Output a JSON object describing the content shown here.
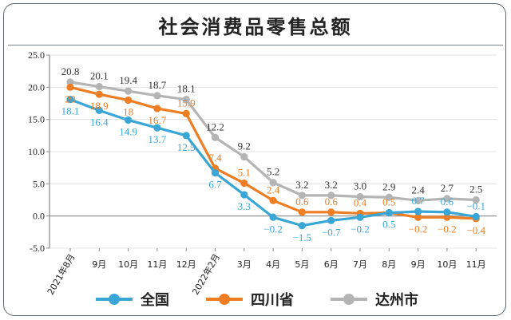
{
  "colors": {
    "national": "#3aa6d6",
    "sichuan": "#ee7d24",
    "dazhou": "#b4b4b4",
    "axis": "#8a8a8a",
    "grid": "#dddddd",
    "text": "#222222"
  },
  "chart_data": {
    "type": "line",
    "title": "社会消费品零售总额",
    "categories": [
      "2021年8月",
      "9月",
      "10月",
      "11月",
      "12月",
      "2022年2月",
      "3月",
      "4月",
      "5月",
      "6月",
      "7月",
      "8月",
      "9月",
      "10月",
      "11月"
    ],
    "ylim": [
      -5.0,
      25.0
    ],
    "yticks": [
      "25.0",
      "20.0",
      "15.0",
      "10.0",
      "5.0",
      "0.0",
      "-5.0"
    ],
    "ytick_values": [
      25,
      20,
      15,
      10,
      5,
      0,
      -5
    ],
    "legend_position": "bottom",
    "series": [
      {
        "name": "全国",
        "key": "national",
        "values": [
          18.1,
          16.4,
          14.9,
          13.7,
          12.5,
          6.7,
          3.3,
          -0.2,
          -1.5,
          -0.7,
          -0.2,
          0.5,
          0.7,
          0.6,
          -0.1
        ],
        "labels": [
          "18.1",
          "16.4",
          "14.9",
          "13.7",
          "12.5",
          "6.7",
          "3.3",
          "−0.2",
          "−1.5",
          "−0.7",
          "−0.2",
          "0.5",
          "0.7",
          "0.6",
          "−0.1"
        ]
      },
      {
        "name": "四川省",
        "key": "sichuan",
        "values": [
          20,
          18.9,
          18,
          16.7,
          15.9,
          7.4,
          5.1,
          2.4,
          0.6,
          0.6,
          0.4,
          0.5,
          -0.2,
          -0.2,
          -0.4
        ],
        "labels": [
          "20",
          "18.9",
          "18",
          "16.7",
          "15.9",
          "7.4",
          "5.1",
          "2.4",
          "0.6",
          "0.6",
          "0.4",
          "0.5",
          "−0.2",
          "−0.2",
          "−0.4"
        ]
      },
      {
        "name": "达州市",
        "key": "dazhou",
        "values": [
          20.8,
          20.1,
          19.4,
          18.7,
          18.1,
          12.2,
          9.2,
          5.2,
          3.2,
          3.2,
          3.0,
          2.9,
          2.4,
          2.7,
          2.5
        ],
        "labels": [
          "20.8",
          "20.1",
          "19.4",
          "18.7",
          "18.1",
          "12.2",
          "9.2",
          "5.2",
          "3.2",
          "3.2",
          "3.0",
          "2.9",
          "2.4",
          "2.7",
          "2.5"
        ]
      }
    ]
  }
}
